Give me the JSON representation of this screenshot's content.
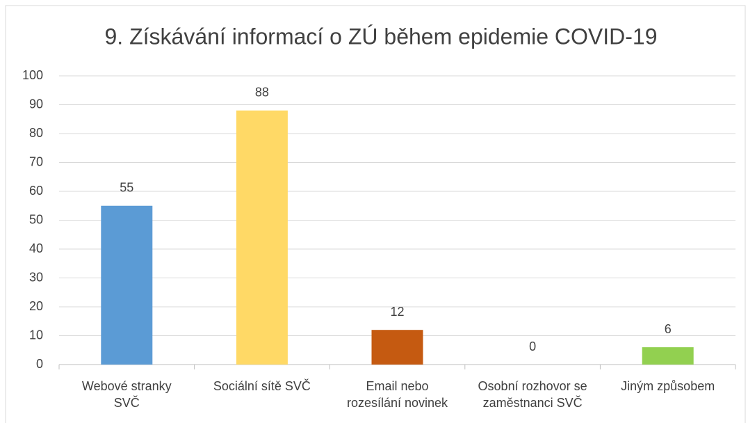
{
  "chart_data": {
    "type": "bar",
    "title": "9. Získávání informací o ZÚ během epidemie COVID-19",
    "categories": [
      "Webové stranky\nSVČ",
      "Sociální sítě SVČ",
      "Email nebo\nrozesílání novinek",
      "Osobní rozhovor se\nzaměstnanci SVČ",
      "Jiným způsobem"
    ],
    "values": [
      55,
      88,
      12,
      0,
      6
    ],
    "colors": [
      "#5b9bd5",
      "#ffd966",
      "#c55a11",
      "#4472c4",
      "#92d050"
    ],
    "ylim": [
      0,
      100
    ],
    "yticks": [
      0,
      10,
      20,
      30,
      40,
      50,
      60,
      70,
      80,
      90,
      100
    ],
    "grid": true
  }
}
